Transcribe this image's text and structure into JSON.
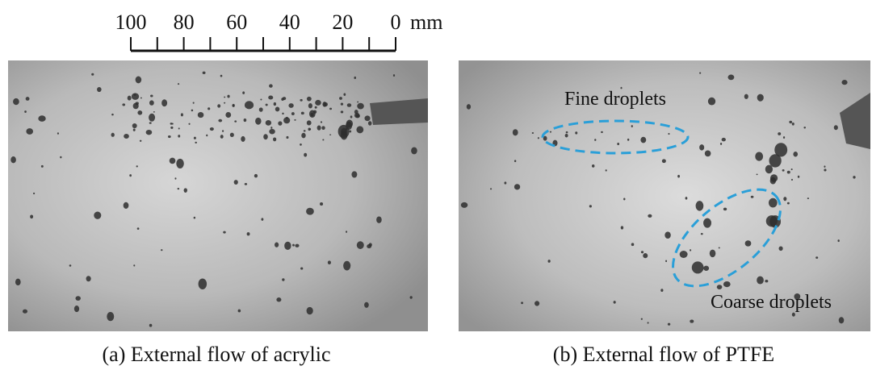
{
  "scale_bar": {
    "labels": [
      "100",
      "80",
      "60",
      "40",
      "20",
      "0"
    ],
    "unit": "mm"
  },
  "panels": [
    {
      "caption": "(a) External flow of acrylic"
    },
    {
      "caption": "(b) External flow of PTFE",
      "annotations": [
        "Fine droplets",
        "Coarse droplets"
      ]
    }
  ]
}
